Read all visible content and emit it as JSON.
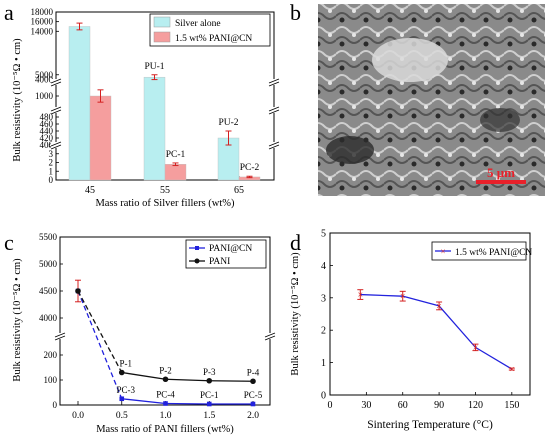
{
  "panel_letters": {
    "a": "a",
    "b": "b",
    "c": "c",
    "d": "d"
  },
  "sem": {
    "scale_label": "5 μm",
    "scale_color": "#e8202a"
  },
  "chart_data": [
    {
      "panel": "a",
      "type": "bar",
      "xlabel": "Mass ratio of Silver fillers (wt%)",
      "ylabel": "Bulk resistivity (10⁻⁵Ω • cm)",
      "categories": [
        "45",
        "55",
        "65"
      ],
      "series": [
        {
          "name": "Silver alone",
          "color": "#b8eef0",
          "values": [
            15000,
            4500,
            420
          ],
          "errors": [
            700,
            500,
            20
          ],
          "labels": [
            "",
            "PU-1",
            "PU-2"
          ]
        },
        {
          "name": "1.5 wt% PANI@CN",
          "color": "#f59e9e",
          "values": [
            1000,
            1.8,
            0.35
          ],
          "errors": [
            220,
            0.15,
            0.08
          ],
          "labels": [
            "",
            "PC-1",
            "PC-2"
          ]
        }
      ],
      "broken_axis": [
        {
          "range": [
            0,
            4
          ],
          "ticks": [
            0,
            1,
            2,
            3,
            4
          ]
        },
        {
          "range": [
            400,
            500
          ],
          "ticks": [
            400,
            420,
            440,
            460,
            480
          ]
        },
        {
          "range": [
            500,
            1500
          ],
          "ticks": [
            1000
          ]
        },
        {
          "range": [
            3500,
            18000
          ],
          "ticks": [
            4000,
            5000,
            14000,
            16000,
            18000
          ]
        }
      ],
      "legend": "top-right"
    },
    {
      "panel": "c",
      "type": "line",
      "xlabel": "Mass ratio of PANI fillers (wt%)",
      "ylabel": "Bulk resistivity (10⁻⁵Ω • cm)",
      "x": [
        0.0,
        0.5,
        1.0,
        1.5,
        2.0
      ],
      "x_ticks": [
        "0.0",
        "0.5",
        "1.0",
        "1.5",
        "2.0"
      ],
      "series": [
        {
          "name": "PANI@CN",
          "color": "#2222dd",
          "values": [
            4500,
            25,
            6,
            4,
            4
          ],
          "point_labels": [
            "",
            "PC-3",
            "PC-4",
            "PC-1",
            "PC-5"
          ]
        },
        {
          "name": "PANI",
          "color": "#111111",
          "values": [
            4500,
            130,
            103,
            97,
            95
          ],
          "point_labels": [
            "",
            "P-1",
            "P-2",
            "P-3",
            "P-4"
          ]
        }
      ],
      "first_point_error": 200,
      "broken_axis": [
        {
          "range": [
            0,
            200
          ],
          "ticks": [
            0,
            100,
            200
          ]
        },
        {
          "range": [
            4000,
            5500
          ],
          "ticks": [
            4000,
            4500,
            5000,
            5500
          ]
        }
      ],
      "legend": "top-right"
    },
    {
      "panel": "d",
      "type": "line",
      "xlabel": "Sintering Temperature (°C)",
      "ylabel": "Bulk resistivity (10⁻⁵Ω • cm)",
      "x": [
        25,
        60,
        90,
        120,
        150
      ],
      "x_ticks": [
        "0",
        "30",
        "60",
        "90",
        "120",
        "150"
      ],
      "xlim": [
        0,
        165
      ],
      "ylim": [
        0,
        5
      ],
      "y_ticks": [
        "0",
        "1",
        "2",
        "3",
        "4",
        "5"
      ],
      "series": [
        {
          "name": "1.5 wt% PANI@CN",
          "color": "#2222dd",
          "values": [
            3.1,
            3.05,
            2.75,
            1.47,
            0.8
          ],
          "errors": [
            0.15,
            0.15,
            0.12,
            0.1,
            0.03
          ]
        }
      ],
      "legend": "top-right"
    }
  ]
}
